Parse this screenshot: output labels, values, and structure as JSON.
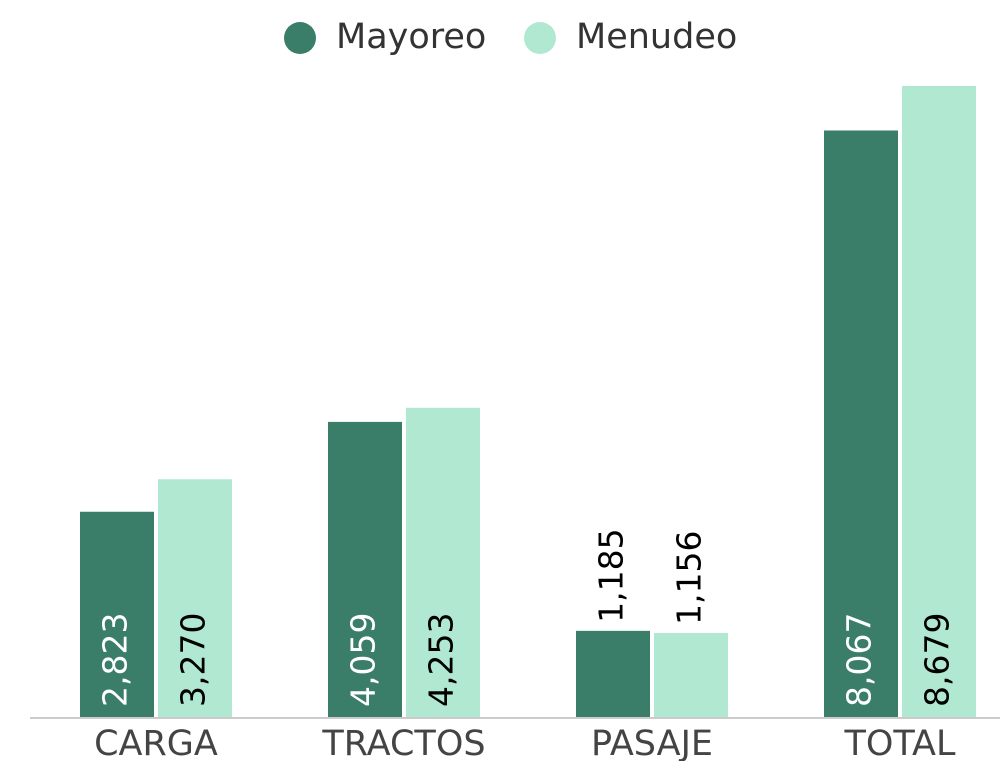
{
  "chart_data": {
    "type": "bar",
    "categories": [
      "CARGA",
      "TRACTOS",
      "PASAJE",
      "TOTAL"
    ],
    "series": [
      {
        "name": "Mayoreo",
        "color": "#3a7d68",
        "values": [
          2823,
          4059,
          1185,
          8067
        ],
        "value_labels": [
          "2,823",
          "4,059",
          "1,185",
          "8,067"
        ]
      },
      {
        "name": "Menudeo",
        "color": "#b0e8d1",
        "values": [
          3270,
          4253,
          1156,
          8679
        ],
        "value_labels": [
          "3,270",
          "4,253",
          "1,156",
          "8,679"
        ]
      }
    ],
    "legend": "top"
  }
}
